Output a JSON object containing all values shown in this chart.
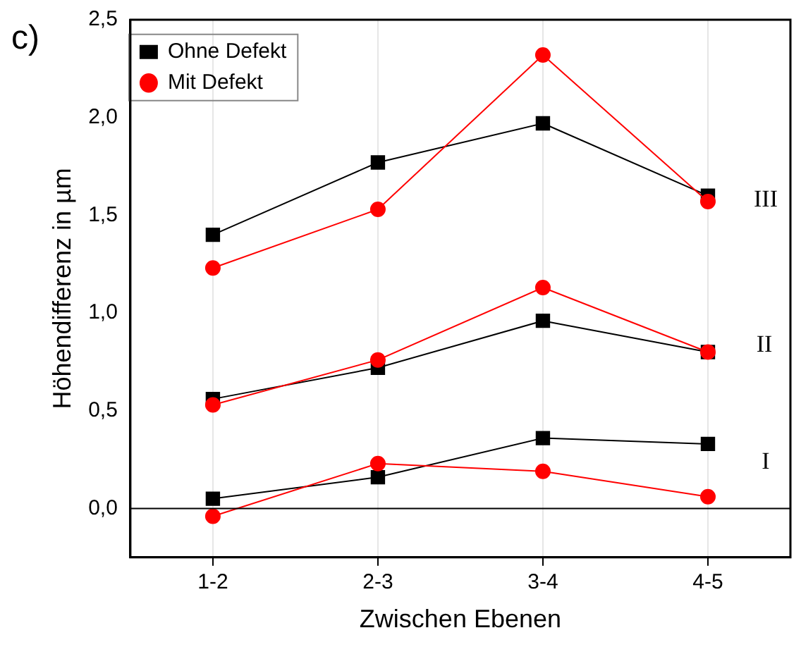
{
  "chart_data": {
    "type": "line",
    "xlabel": "Zwischen Ebenen",
    "ylabel": "Höhendifferenz in µm",
    "categories": [
      "1-2",
      "2-3",
      "3-4",
      "4-5"
    ],
    "series": [
      {
        "name": "Ohne Defekt",
        "color": "#000000",
        "marker": "square",
        "values": [
          1.4,
          1.77,
          1.97,
          1.6
        ]
      },
      {
        "name": "Mit Defekt",
        "color": "#ff0000",
        "marker": "circle",
        "values": [
          1.23,
          1.53,
          2.32,
          1.57
        ]
      },
      {
        "color": "#000000",
        "marker": "square",
        "values": [
          0.56,
          0.72,
          0.96,
          0.8
        ]
      },
      {
        "color": "#ff0000",
        "marker": "circle",
        "values": [
          0.53,
          0.76,
          1.13,
          0.8
        ]
      },
      {
        "color": "#000000",
        "marker": "square",
        "values": [
          0.05,
          0.16,
          0.36,
          0.33
        ]
      },
      {
        "color": "#ff0000",
        "marker": "circle",
        "values": [
          -0.04,
          0.23,
          0.19,
          0.06
        ]
      }
    ],
    "ylim": [
      -0.25,
      2.5
    ],
    "yticks": [
      {
        "value": 0,
        "label": "0,0"
      },
      {
        "value": 0.5,
        "label": "0,5"
      },
      {
        "value": 1,
        "label": "1,0"
      },
      {
        "value": 1.5,
        "label": "1,5"
      },
      {
        "value": 2,
        "label": "2,0"
      },
      {
        "value": 2.5,
        "label": "2,5"
      }
    ],
    "grid": "x",
    "legend": "top left",
    "ref_lines": [
      {
        "axis": "y",
        "value": 0,
        "color": "#000000"
      }
    ],
    "annotations": [
      "c)",
      "I",
      "II",
      "III"
    ]
  }
}
